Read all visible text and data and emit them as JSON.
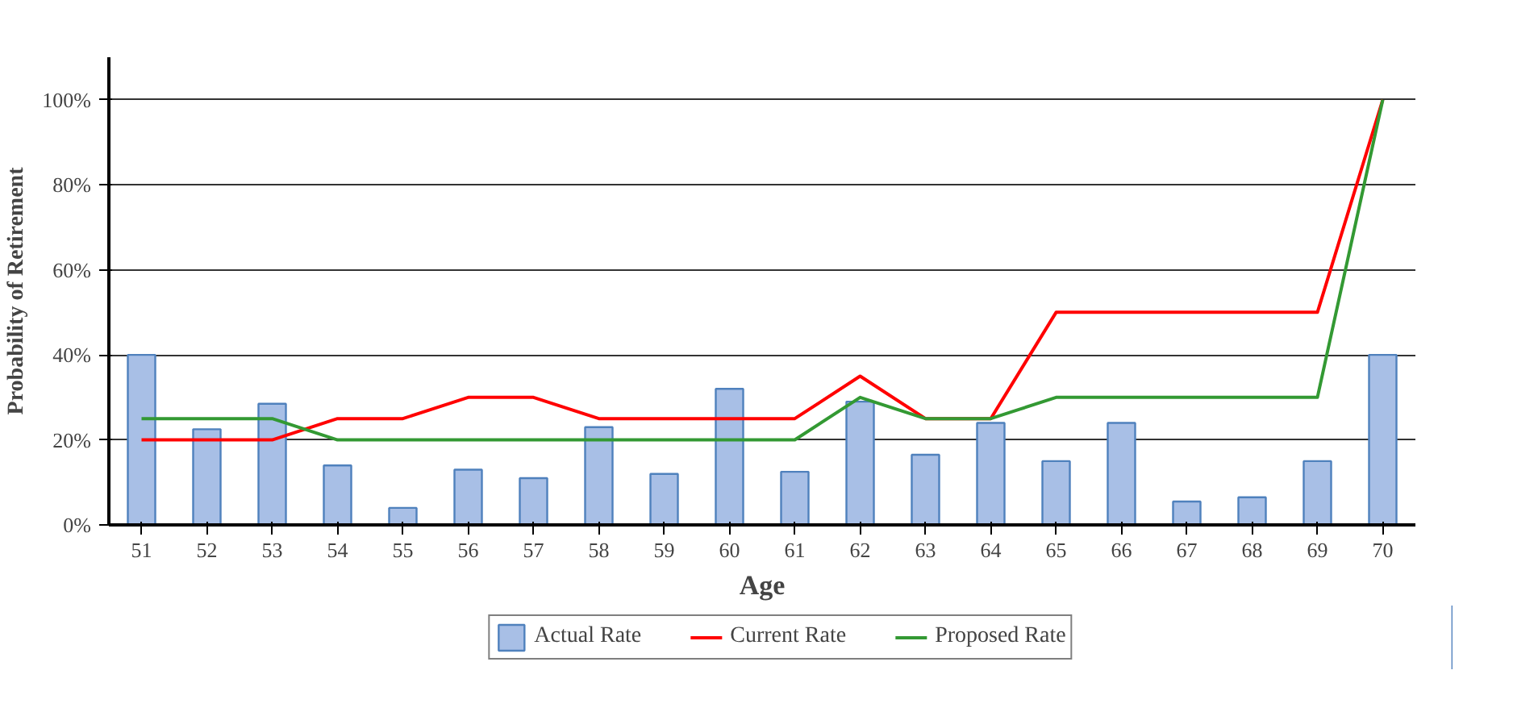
{
  "chart_data": {
    "type": "bar",
    "xlabel": "Age",
    "ylabel": "Probability of Retirement",
    "categories": [
      "51",
      "52",
      "53",
      "54",
      "55",
      "56",
      "57",
      "58",
      "59",
      "60",
      "61",
      "62",
      "63",
      "64",
      "65",
      "66",
      "67",
      "68",
      "69",
      "70"
    ],
    "series": [
      {
        "name": "Actual Rate",
        "color": "#a8bfe6",
        "values": [
          40,
          22.5,
          28.5,
          14,
          4,
          13,
          11,
          23,
          12,
          32,
          12.5,
          29,
          16.5,
          24,
          15,
          24,
          5.5,
          6.5,
          15,
          40
        ]
      },
      {
        "name": "Current Rate",
        "type": "line",
        "color": "#ff0000",
        "values": [
          20,
          20,
          20,
          25,
          25,
          30,
          30,
          25,
          25,
          25,
          25,
          35,
          25,
          25,
          50,
          50,
          50,
          50,
          50,
          100
        ]
      },
      {
        "name": "Proposed Rate",
        "type": "line",
        "color": "#339933",
        "values": [
          25,
          25,
          25,
          20,
          20,
          20,
          20,
          20,
          20,
          20,
          20,
          30,
          25,
          25,
          30,
          30,
          30,
          30,
          30,
          100
        ]
      }
    ],
    "ylim": [
      0,
      110
    ],
    "yticks": [
      {
        "value": 0,
        "label": "0%"
      },
      {
        "value": 20,
        "label": "20%"
      },
      {
        "value": 40,
        "label": "40%"
      },
      {
        "value": 60,
        "label": "60%"
      },
      {
        "value": 80,
        "label": "80%"
      },
      {
        "value": 100,
        "label": "100%"
      }
    ],
    "grid": "y",
    "legend": "bottom"
  }
}
